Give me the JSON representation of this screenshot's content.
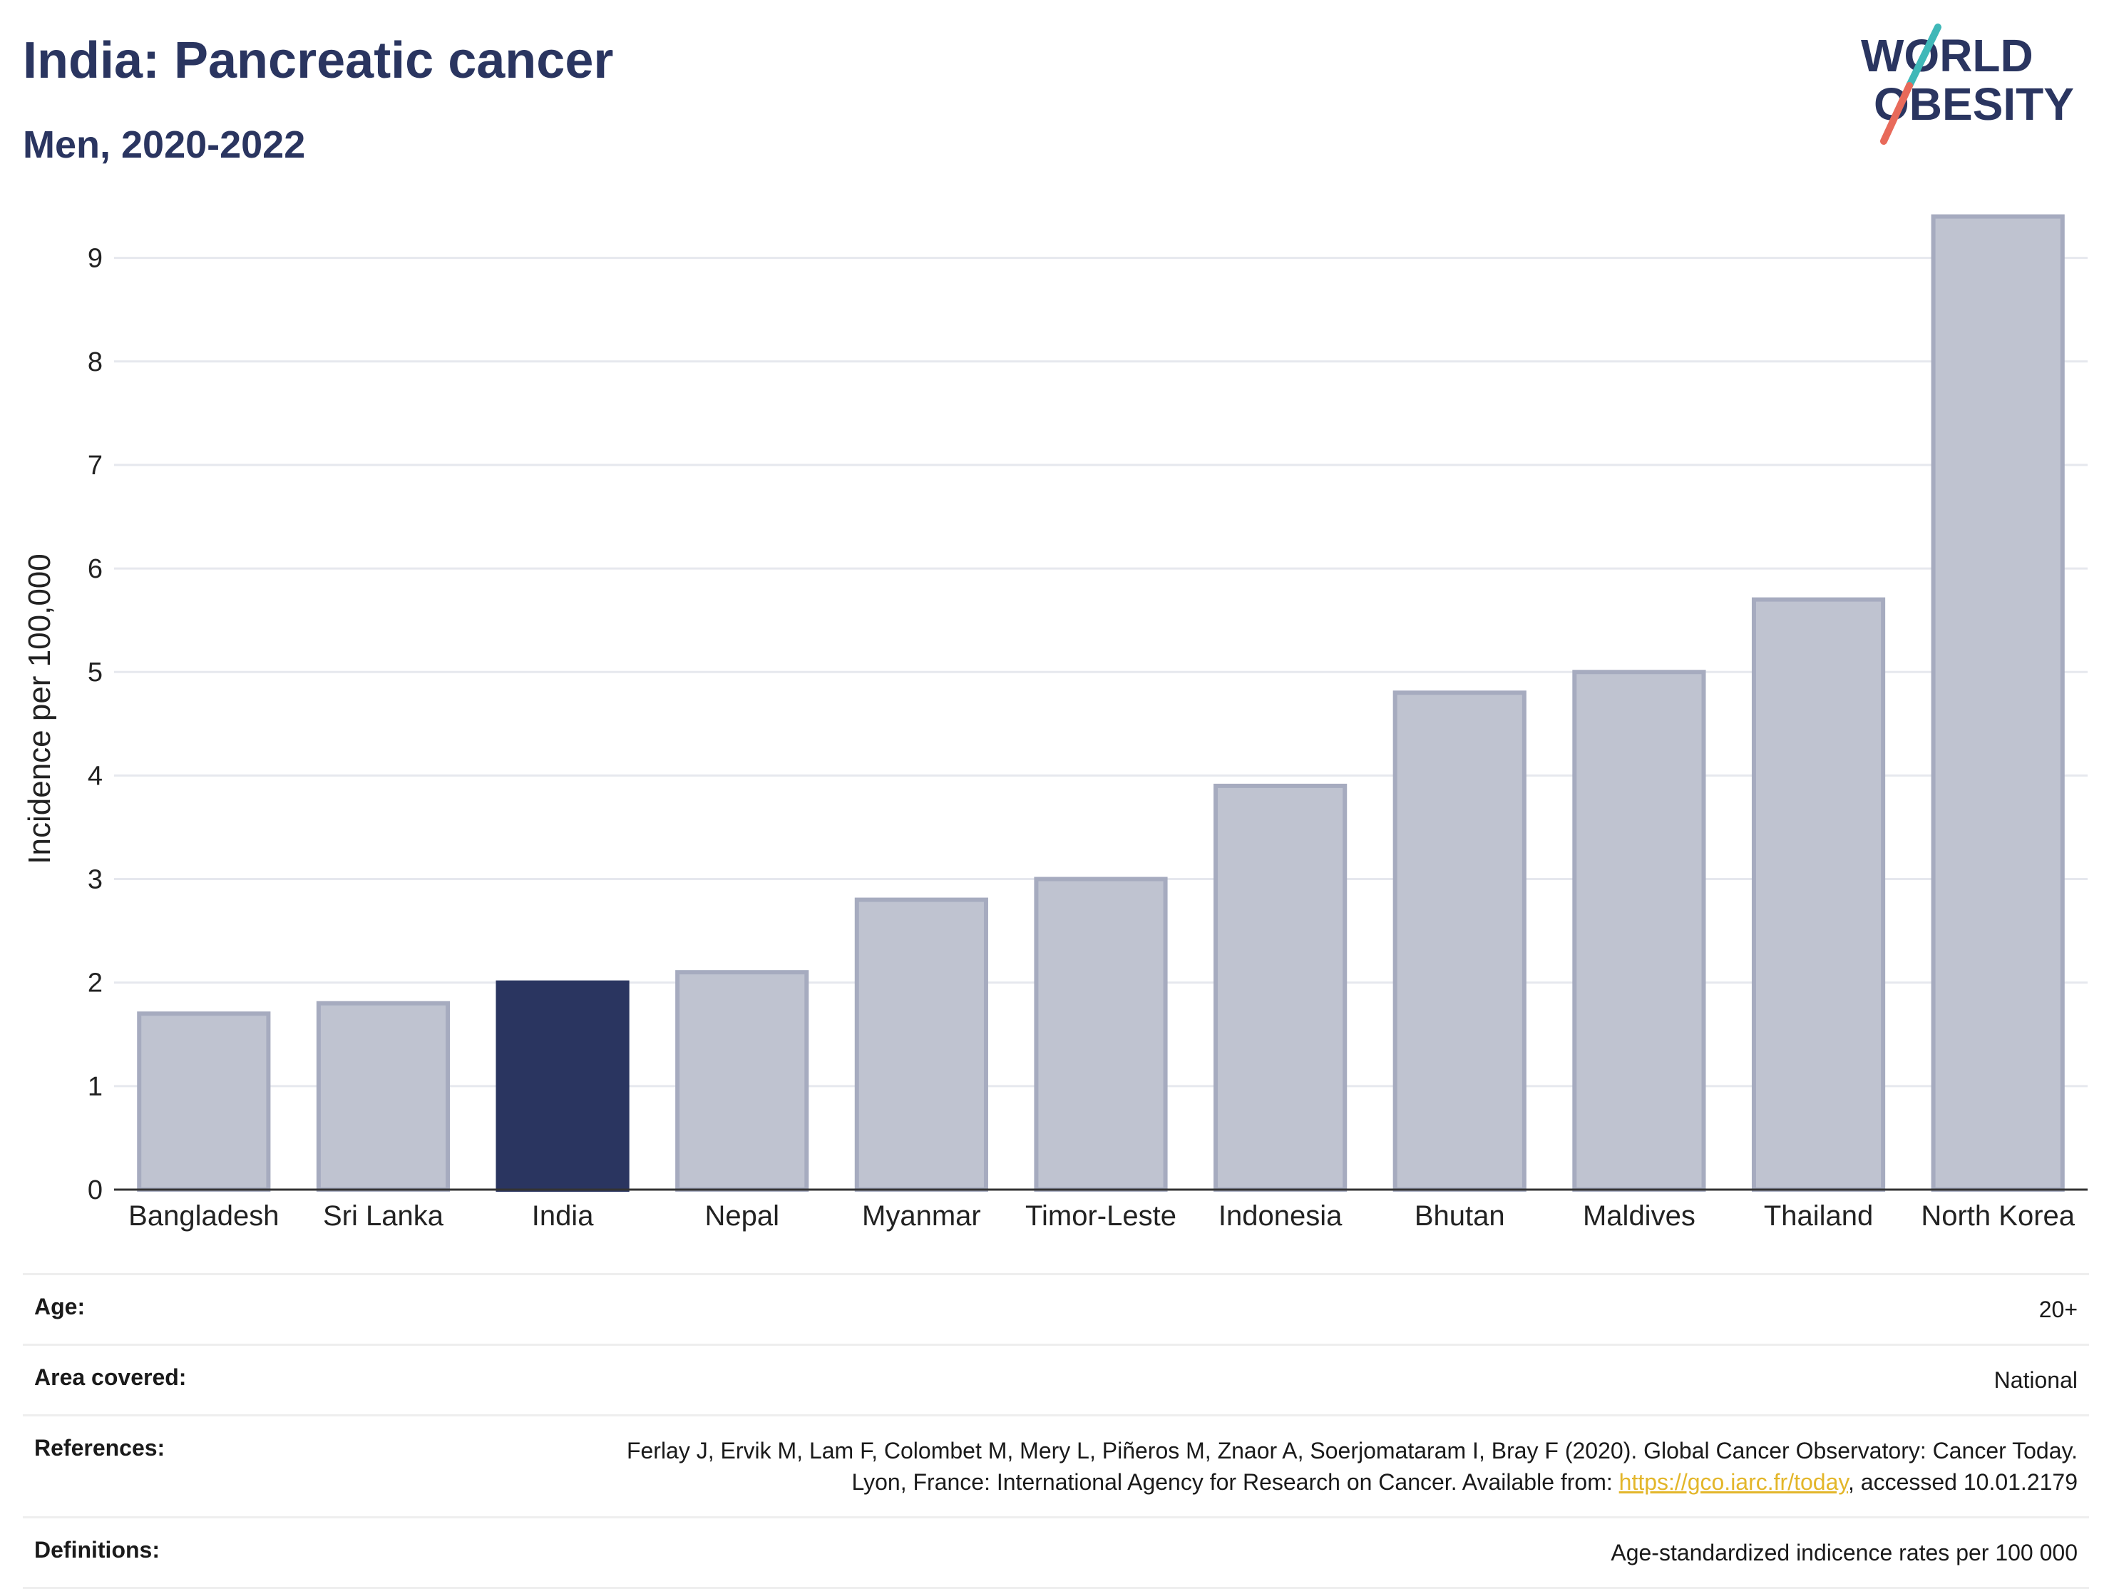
{
  "header": {
    "title": "India: Pancreatic cancer",
    "subtitle": "Men, 2020-2022"
  },
  "logo": {
    "line1": "WORLD",
    "line2": "OBESITY",
    "colors": {
      "text": "#2a3560",
      "slash_top": "#3fb8b8",
      "slash_bottom": "#e86a5a"
    }
  },
  "chart_data": {
    "type": "bar",
    "categories": [
      "Bangladesh",
      "Sri Lanka",
      "India",
      "Nepal",
      "Myanmar",
      "Timor-Leste",
      "Indonesia",
      "Bhutan",
      "Maldives",
      "Thailand",
      "North Korea"
    ],
    "values": [
      1.7,
      1.8,
      2.0,
      2.1,
      2.8,
      3.0,
      3.9,
      4.8,
      5.0,
      5.7,
      9.4
    ],
    "highlight": "India",
    "ylabel": "Incidence per 100,000",
    "xlabel": "",
    "ylim": [
      0,
      9.7
    ],
    "yticks": [
      0,
      1,
      2,
      3,
      4,
      5,
      6,
      7,
      8,
      9
    ],
    "grid": true,
    "colors": {
      "bar": "#bfc3d0",
      "bar_border": "#a6abbf",
      "highlight": "#2a3560",
      "grid": "#e6e8ee",
      "axis": "#333333"
    }
  },
  "meta": {
    "age": {
      "label": "Age:",
      "value": "20+"
    },
    "area": {
      "label": "Area covered:",
      "value": "National"
    },
    "references": {
      "label": "References:",
      "text_before": "Ferlay J, Ervik M, Lam F, Colombet M, Mery L, Piñeros M, Znaor A, Soerjomataram I, Bray F (2020). Global Cancer Observatory: Cancer Today. Lyon, France: International Agency for Research on Cancer. Available from: ",
      "link": "https://gco.iarc.fr/today",
      "text_after": ", accessed 10.01.2179"
    },
    "definitions": {
      "label": "Definitions:",
      "value": "Age-standardized indicence rates per 100 000"
    }
  }
}
